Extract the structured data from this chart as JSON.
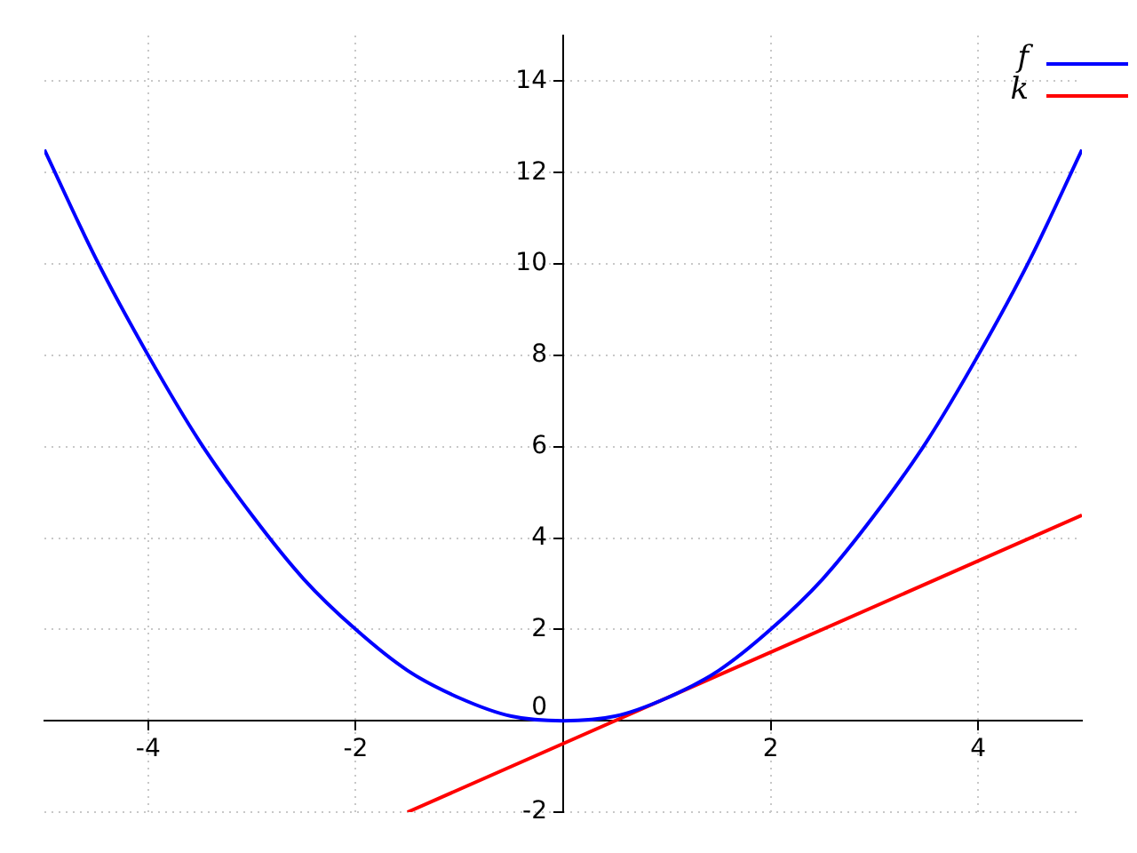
{
  "chart_data": {
    "type": "line",
    "x": [
      -5,
      -4.5,
      -4,
      -3.5,
      -3,
      -2.5,
      -2,
      -1.5,
      -1,
      -0.5,
      0,
      0.5,
      1,
      1.5,
      2,
      2.5,
      3,
      3.5,
      4,
      4.5,
      5
    ],
    "series": [
      {
        "name": "f",
        "color": "#0000ff",
        "values": [
          12.5,
          10.1,
          8,
          6.1,
          4.5,
          3.1,
          2,
          1.1,
          0.5,
          0.1,
          0,
          0.1,
          0.5,
          1.1,
          2,
          3.1,
          4.5,
          6.1,
          8,
          10.1,
          12.5
        ]
      },
      {
        "name": "k",
        "color": "#ff0000",
        "x": [
          -1.5,
          5
        ],
        "values": [
          -2,
          4.5
        ]
      }
    ],
    "xlim": [
      -5,
      5
    ],
    "ylim": [
      -2,
      15
    ],
    "xticks": [
      -4,
      -2,
      2,
      4
    ],
    "yticks": [
      -2,
      0,
      2,
      4,
      6,
      8,
      10,
      12,
      14
    ],
    "grid": true,
    "legend": "top right",
    "marker": "none",
    "line_style": "solid"
  }
}
